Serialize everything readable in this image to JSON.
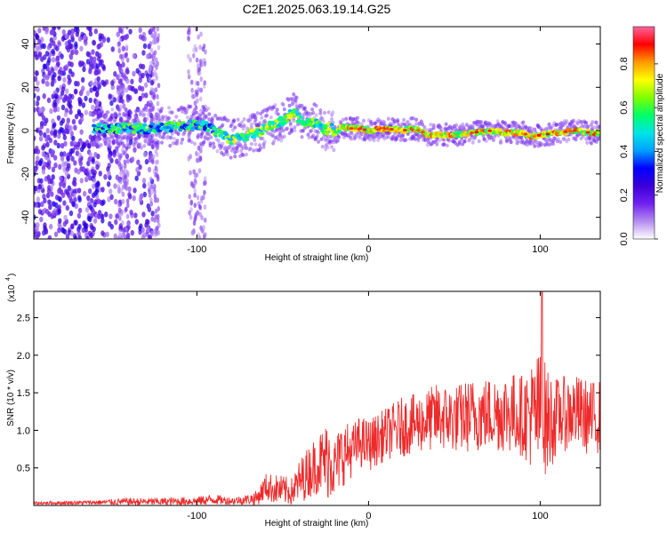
{
  "title": "C2E1.2025.063.19.14.G25",
  "chart_data": [
    {
      "type": "heatmap",
      "xlabel": "Height of straight line (km)",
      "ylabel": "Frequency (Hz)",
      "xlim": [
        -195,
        135
      ],
      "ylim": [
        -50,
        48
      ],
      "x_ticks": [
        -100,
        0,
        100
      ],
      "y_ticks": [
        -40,
        -20,
        0,
        20,
        40
      ],
      "ridge": {
        "description_points_x": [
          -155,
          -130,
          -110,
          -100,
          -95,
          -80,
          -65,
          -55,
          -48,
          -44,
          -40,
          -35,
          -30,
          -25,
          -22,
          -20,
          -15,
          -10,
          -5,
          0,
          10,
          20,
          25,
          30,
          35,
          40,
          50,
          60,
          70,
          80,
          90,
          95,
          100,
          110,
          120,
          130
        ],
        "center_freq_hz": [
          1,
          1,
          2,
          3,
          2,
          -4,
          -1,
          3,
          5,
          9,
          5,
          4,
          3,
          0,
          2,
          -2,
          2,
          1,
          1,
          0,
          1,
          0,
          1,
          0,
          -2,
          -2,
          -2,
          -1,
          0,
          -1,
          -1,
          -3,
          -2,
          -1,
          0,
          -1
        ]
      },
      "colorbar": {
        "label": "Normalized spectral amplitude",
        "range": [
          0,
          0.97
        ],
        "ticks": [
          0.0,
          0.2,
          0.4,
          0.6,
          0.8
        ],
        "tick_labels": [
          "0.0",
          "0.2",
          "0.4",
          "0.6",
          "0.8"
        ],
        "colormap": [
          "#ffffff",
          "#b48cf0",
          "#7020f0",
          "#3c00d8",
          "#0000ff",
          "#00a0ff",
          "#00e6e6",
          "#00ff66",
          "#80ff00",
          "#ffff00",
          "#ff9900",
          "#ff0000",
          "#ff66a0"
        ]
      }
    },
    {
      "type": "line",
      "xlabel": "Height of straight line (km)",
      "ylabel": "SNR (10 * v/v)",
      "y_multiplier_label": "(x10",
      "y_multiplier_exp": "4",
      "xlim": [
        -195,
        135
      ],
      "ylim": [
        0,
        2.85
      ],
      "x_ticks": [
        -100,
        0,
        100
      ],
      "y_ticks": [
        0.5,
        1.0,
        1.5,
        2.0,
        2.5
      ],
      "y_tick_labels": [
        "0.5",
        "1.0",
        "1.5",
        "2.0",
        "2.5"
      ],
      "color": "#ee2a2a",
      "envelope": {
        "x": [
          -195,
          -160,
          -140,
          -120,
          -100,
          -90,
          -80,
          -70,
          -65,
          -60,
          -55,
          -50,
          -45,
          -40,
          -35,
          -30,
          -25,
          -22,
          -20,
          -15,
          -10,
          -5,
          0,
          10,
          20,
          30,
          40,
          50,
          60,
          70,
          80,
          90,
          100,
          105,
          110,
          120,
          130,
          135
        ],
        "mean": [
          0.03,
          0.04,
          0.05,
          0.05,
          0.06,
          0.08,
          0.06,
          0.08,
          0.1,
          0.25,
          0.22,
          0.2,
          0.18,
          0.32,
          0.45,
          0.55,
          0.6,
          0.65,
          0.5,
          0.7,
          0.72,
          0.85,
          0.8,
          0.95,
          1.05,
          1.1,
          1.18,
          1.15,
          1.2,
          1.22,
          1.25,
          1.2,
          1.2,
          1.1,
          1.2,
          1.25,
          1.15,
          1.2
        ],
        "amplitude": [
          0.02,
          0.03,
          0.05,
          0.05,
          0.06,
          0.07,
          0.05,
          0.07,
          0.1,
          0.18,
          0.2,
          0.2,
          0.18,
          0.3,
          0.35,
          0.4,
          0.5,
          0.6,
          0.4,
          0.45,
          0.35,
          0.35,
          0.35,
          0.35,
          0.4,
          0.4,
          0.45,
          0.45,
          0.5,
          0.5,
          0.55,
          0.55,
          0.9,
          0.7,
          0.5,
          0.5,
          0.5,
          0.5
        ]
      },
      "peak": {
        "x": 101,
        "y": 2.85
      }
    }
  ]
}
